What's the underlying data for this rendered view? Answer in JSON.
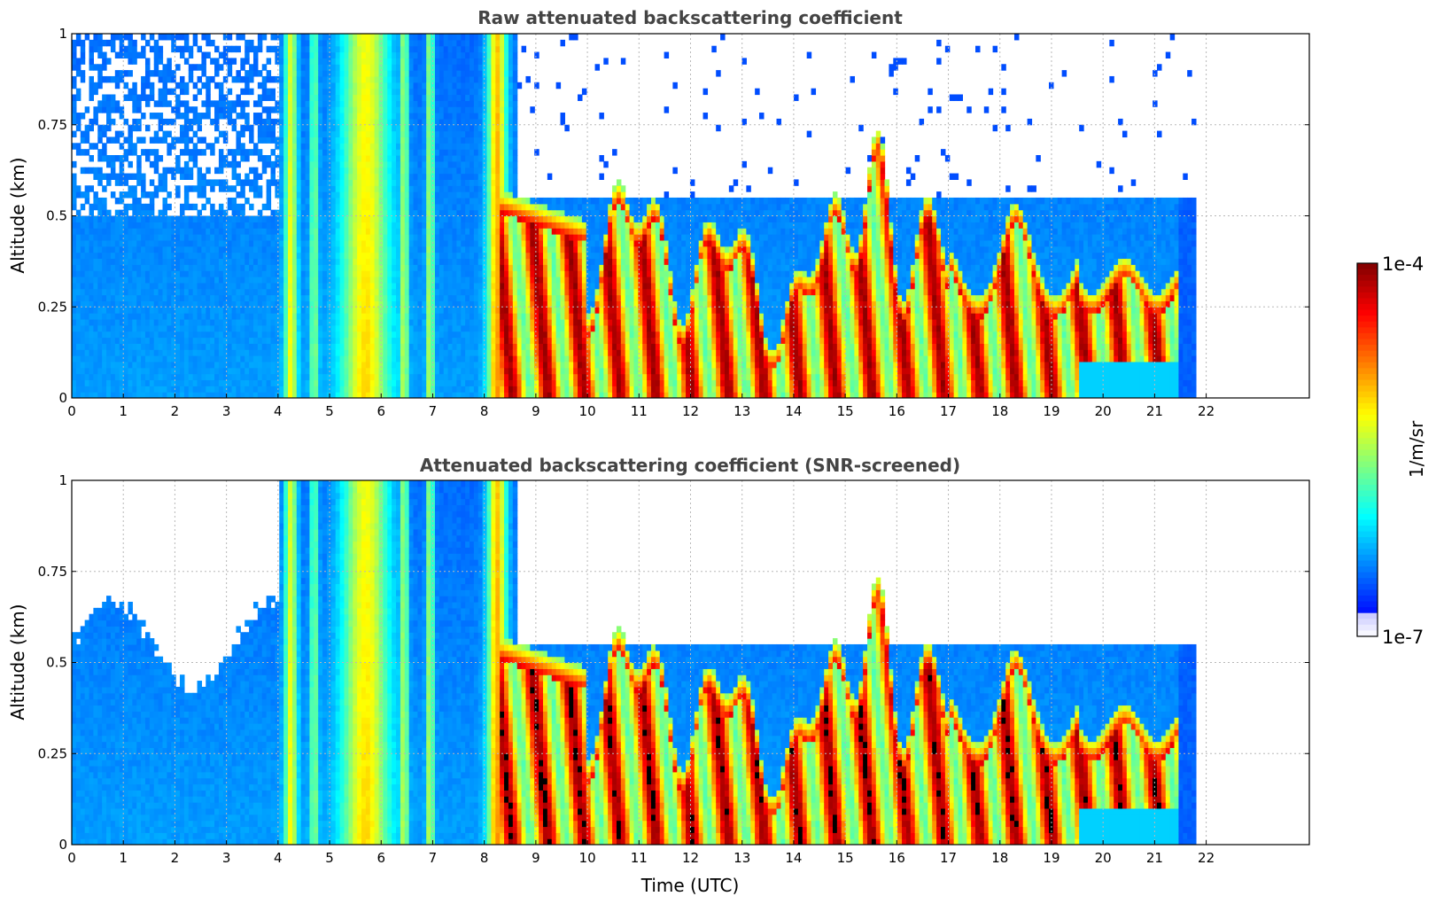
{
  "chart_data": [
    {
      "type": "heatmap",
      "title": "Raw attenuated backscattering coefficient",
      "xlabel": "",
      "ylabel": "Altitude (km)",
      "xlim": [
        0,
        24
      ],
      "ylim": [
        0,
        1
      ],
      "xticks": [
        "0",
        "1",
        "2",
        "3",
        "4",
        "5",
        "6",
        "7",
        "8",
        "9",
        "10",
        "11",
        "12",
        "13",
        "14",
        "15",
        "16",
        "17",
        "18",
        "19",
        "20",
        "21",
        "22"
      ],
      "yticks": [
        "0",
        "0.25",
        "0.5",
        "0.75",
        "1"
      ],
      "grid": true,
      "data_end_time": 21.8,
      "screened": false
    },
    {
      "type": "heatmap",
      "title": "Attenuated backscattering coefficient (SNR-screened)",
      "xlabel": "Time (UTC)",
      "ylabel": "Altitude (km)",
      "xlim": [
        0,
        24
      ],
      "ylim": [
        0,
        1
      ],
      "xticks": [
        "0",
        "1",
        "2",
        "3",
        "4",
        "5",
        "6",
        "7",
        "8",
        "9",
        "10",
        "11",
        "12",
        "13",
        "14",
        "15",
        "16",
        "17",
        "18",
        "19",
        "20",
        "21",
        "22"
      ],
      "yticks": [
        "0",
        "0.25",
        "0.5",
        "0.75",
        "1"
      ],
      "grid": true,
      "data_end_time": 21.8,
      "screened": true
    }
  ],
  "colorbar": {
    "label": "1/m/sr",
    "max_label": "1e-4",
    "min_label": "1e-7",
    "colormap": "jet",
    "scale": "log",
    "range": [
      1e-07,
      0.0001
    ]
  }
}
